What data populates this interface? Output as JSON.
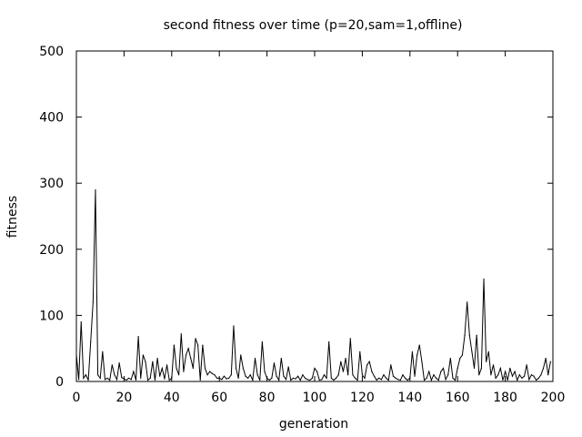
{
  "chart_data": {
    "type": "line",
    "title": "second fitness over time (p=20,sam=1,offline)",
    "xlabel": "generation",
    "ylabel": "fitness",
    "xlim": [
      0,
      200
    ],
    "ylim": [
      0,
      500
    ],
    "xticks": [
      0,
      20,
      40,
      60,
      80,
      100,
      120,
      140,
      160,
      180,
      200
    ],
    "yticks": [
      0,
      100,
      200,
      300,
      400,
      500
    ],
    "grid": false,
    "legend": "none",
    "line_color": "#000000",
    "series": [
      {
        "x": [
          0,
          1,
          2,
          3,
          4,
          5,
          6,
          7,
          8,
          9,
          10,
          11,
          12,
          13,
          14,
          15,
          16,
          17,
          18,
          19,
          20,
          21,
          22,
          23,
          24,
          25,
          26,
          27,
          28,
          29,
          30,
          31,
          32,
          33,
          34,
          35,
          36,
          37,
          38,
          39,
          40,
          41,
          42,
          43,
          44,
          45,
          46,
          47,
          48,
          49,
          50,
          51,
          52,
          53,
          54,
          55,
          56,
          57,
          58,
          59,
          60,
          61,
          62,
          63,
          64,
          65,
          66,
          67,
          68,
          69,
          70,
          71,
          72,
          73,
          74,
          75,
          76,
          77,
          78,
          79,
          80,
          81,
          82,
          83,
          84,
          85,
          86,
          87,
          88,
          89,
          90,
          91,
          92,
          93,
          94,
          95,
          96,
          97,
          98,
          99,
          100,
          101,
          102,
          103,
          104,
          105,
          106,
          107,
          108,
          109,
          110,
          111,
          112,
          113,
          114,
          115,
          116,
          117,
          118,
          119,
          120,
          121,
          122,
          123,
          124,
          125,
          126,
          127,
          128,
          129,
          130,
          131,
          132,
          133,
          134,
          135,
          136,
          137,
          138,
          139,
          140,
          141,
          142,
          143,
          144,
          145,
          146,
          147,
          148,
          149,
          150,
          151,
          152,
          153,
          154,
          155,
          156,
          157,
          158,
          159,
          160,
          161,
          162,
          163,
          164,
          165,
          166,
          167,
          168,
          169,
          170,
          171,
          172,
          173,
          174,
          175,
          176,
          177,
          178,
          179,
          180,
          181,
          182,
          183,
          184,
          185,
          186,
          187,
          188,
          189,
          190,
          191,
          192,
          193,
          194,
          195,
          196,
          197,
          198,
          199
        ],
        "values": [
          40,
          3,
          90,
          5,
          10,
          2,
          60,
          120,
          290,
          10,
          5,
          45,
          3,
          5,
          2,
          25,
          10,
          3,
          28,
          6,
          4,
          2,
          5,
          3,
          15,
          2,
          68,
          5,
          40,
          30,
          2,
          5,
          30,
          2,
          35,
          8,
          20,
          4,
          25,
          2,
          5,
          55,
          20,
          10,
          72,
          15,
          40,
          50,
          35,
          20,
          65,
          55,
          2,
          55,
          20,
          10,
          15,
          12,
          10,
          5,
          5,
          3,
          8,
          4,
          5,
          10,
          84,
          20,
          5,
          40,
          20,
          8,
          5,
          10,
          2,
          35,
          10,
          2,
          60,
          15,
          5,
          2,
          5,
          28,
          8,
          2,
          35,
          8,
          3,
          22,
          2,
          5,
          4,
          8,
          2,
          10,
          5,
          3,
          2,
          5,
          20,
          15,
          2,
          3,
          10,
          5,
          60,
          5,
          2,
          5,
          10,
          30,
          15,
          35,
          10,
          65,
          10,
          5,
          2,
          45,
          10,
          5,
          25,
          30,
          15,
          8,
          2,
          5,
          3,
          10,
          5,
          2,
          25,
          8,
          5,
          3,
          2,
          10,
          5,
          2,
          5,
          45,
          8,
          40,
          55,
          30,
          2,
          5,
          15,
          2,
          10,
          5,
          2,
          15,
          20,
          3,
          10,
          35,
          5,
          2,
          20,
          35,
          40,
          70,
          120,
          70,
          45,
          20,
          70,
          10,
          20,
          155,
          30,
          45,
          10,
          25,
          5,
          10,
          20,
          2,
          15,
          2,
          20,
          8,
          15,
          2,
          10,
          5,
          8,
          25,
          3,
          10,
          8,
          2,
          5,
          10,
          20,
          35,
          10,
          30
        ]
      }
    ]
  }
}
